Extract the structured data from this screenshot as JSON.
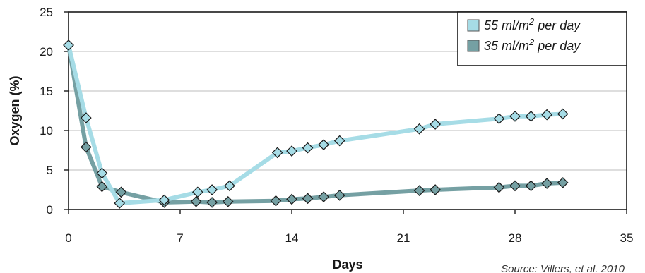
{
  "chart_data": {
    "type": "line",
    "title": "",
    "xlabel": "Days",
    "ylabel": "Oxygen (%)",
    "xlim": [
      0,
      35
    ],
    "ylim": [
      0,
      25
    ],
    "xticks": [
      0,
      7,
      14,
      21,
      28,
      35
    ],
    "yticks": [
      0,
      5,
      10,
      15,
      20,
      25
    ],
    "xtick_labels": [
      "0",
      "7",
      "14",
      "21",
      "28",
      "35"
    ],
    "ytick_labels": [
      "0",
      "5",
      "10",
      "15",
      "20",
      "25"
    ],
    "grid": "horizontal",
    "legend_position": "top-right",
    "source": "Source: Villers, et al. 2010",
    "series": [
      {
        "name": "55 ml/m2 per day",
        "legend_prefix": "55 ml/m",
        "legend_superscript": "2",
        "legend_suffix": " per day",
        "color": "#a6dce6",
        "x": [
          0,
          1.1,
          2.1,
          3.2,
          6,
          8.1,
          9,
          10.1,
          13.1,
          14,
          15,
          16,
          17,
          22,
          23,
          27,
          28,
          29,
          30,
          31
        ],
        "y": [
          20.8,
          11.6,
          4.6,
          0.8,
          1.2,
          2.2,
          2.5,
          3.0,
          7.2,
          7.4,
          7.8,
          8.2,
          8.7,
          10.2,
          10.8,
          11.5,
          11.8,
          11.8,
          12.0,
          12.1
        ]
      },
      {
        "name": "35 ml/m2 per day",
        "legend_prefix": "35 ml/m",
        "legend_superscript": "2",
        "legend_suffix": " per day",
        "color": "#75a0a3",
        "x": [
          0,
          1.1,
          2.1,
          3.3,
          6,
          8,
          9,
          10,
          13,
          14,
          15,
          16,
          17,
          22,
          23,
          27,
          28,
          29,
          30,
          31
        ],
        "y": [
          20.8,
          7.9,
          2.9,
          2.2,
          0.9,
          1.0,
          0.9,
          1.0,
          1.1,
          1.3,
          1.4,
          1.6,
          1.8,
          2.4,
          2.5,
          2.8,
          3.0,
          3.0,
          3.3,
          3.4
        ]
      }
    ]
  }
}
